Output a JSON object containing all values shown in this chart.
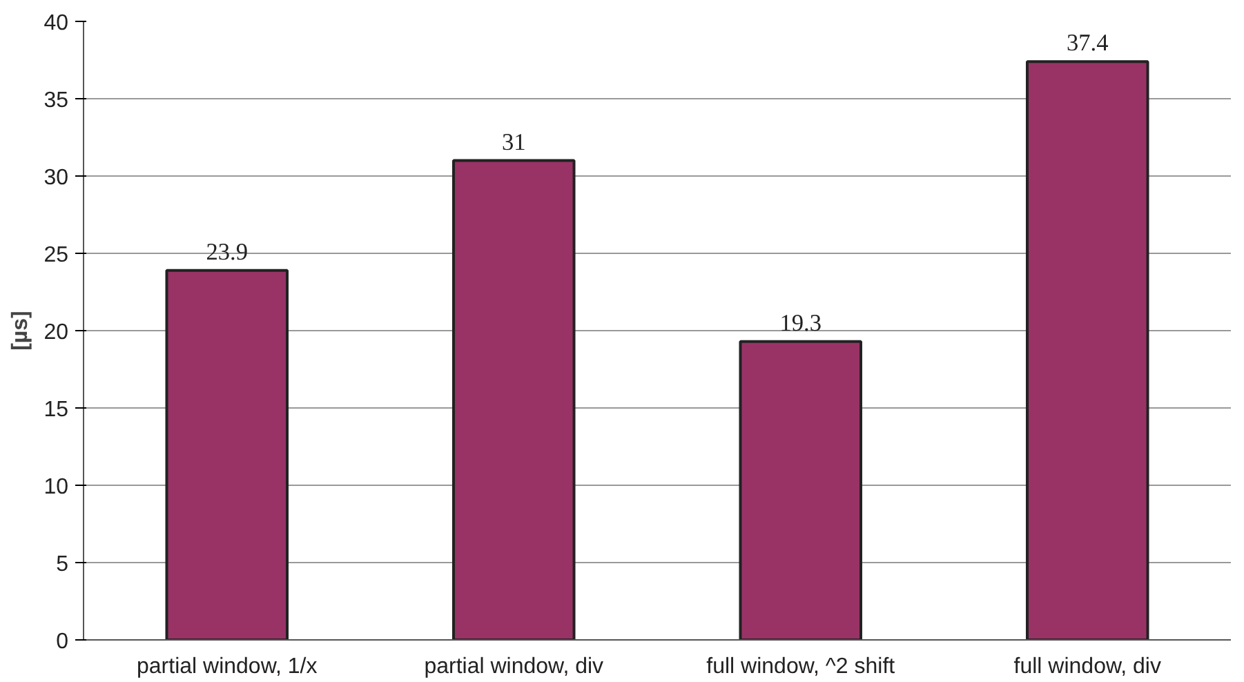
{
  "chart_data": {
    "type": "bar",
    "ylabel": "[µs]",
    "categories": [
      "partial window, 1/x",
      "partial window, div",
      "full window, ^2 shift",
      "full window, div"
    ],
    "values": [
      23.9,
      31,
      19.3,
      37.4
    ],
    "color": "#993366",
    "ylim": [
      0,
      40
    ],
    "yticks": [
      0,
      5,
      10,
      15,
      20,
      25,
      30,
      35,
      40
    ],
    "grid": "y",
    "data_labels": true
  }
}
